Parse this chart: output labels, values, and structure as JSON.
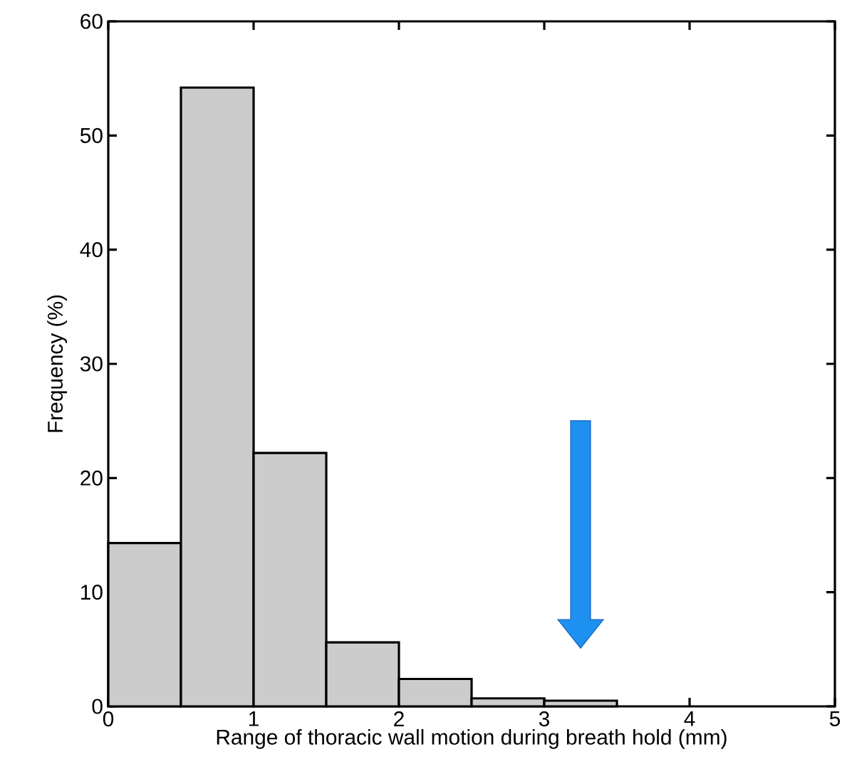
{
  "chart_data": {
    "type": "histogram",
    "xlabel": "Range of thoracic wall motion during breath hold (mm)",
    "ylabel": "Frequency (%)",
    "bins": [
      0,
      0.5,
      1,
      1.5,
      2,
      2.5,
      3,
      3.5
    ],
    "values": [
      14.3,
      54.2,
      22.2,
      5.6,
      2.4,
      0.7,
      0.5
    ],
    "color": "#cccccc",
    "xlim": [
      0,
      5
    ],
    "xticks": [
      0,
      1,
      2,
      3,
      4,
      5
    ],
    "ylim": [
      0,
      60
    ],
    "yticks": [
      0,
      10,
      20,
      30,
      40,
      50,
      60
    ]
  }
}
